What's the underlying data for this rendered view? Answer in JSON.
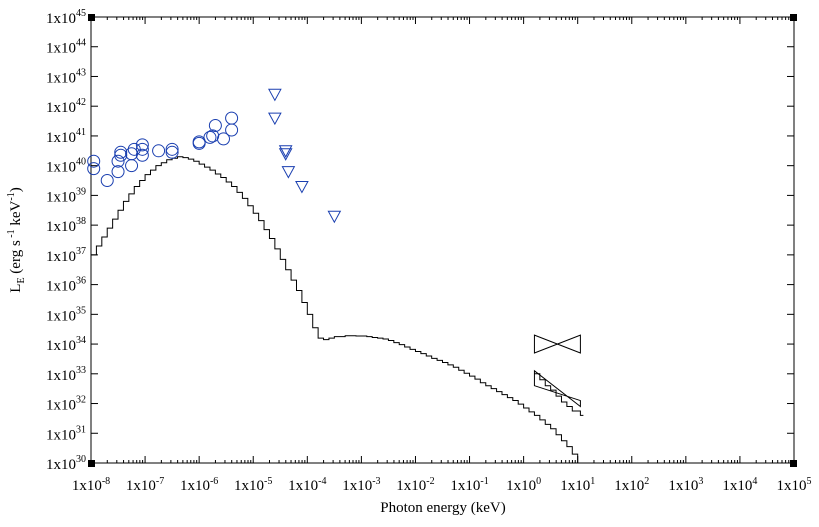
{
  "chart_data": {
    "type": "line",
    "xlabel": "Photon energy (keV)",
    "ylabel": "L_E (erg s^-1 keV^-1)",
    "x_scale": "log",
    "y_scale": "log",
    "xlim": [
      1e-08,
      100000
    ],
    "ylim": [
      1e+30,
      1e+45
    ],
    "x_ticks": [
      {
        "exp": -8,
        "base": "1x10",
        "sup": "-8"
      },
      {
        "exp": -7,
        "base": "1x10",
        "sup": "-7"
      },
      {
        "exp": -6,
        "base": "1x10",
        "sup": "-6"
      },
      {
        "exp": -5,
        "base": "1x10",
        "sup": "-5"
      },
      {
        "exp": -4,
        "base": "1x10",
        "sup": "-4"
      },
      {
        "exp": -3,
        "base": "1x10",
        "sup": "-3"
      },
      {
        "exp": -2,
        "base": "1x10",
        "sup": "-2"
      },
      {
        "exp": -1,
        "base": "1x10",
        "sup": "-1"
      },
      {
        "exp": 0,
        "base": "1x10",
        "sup": "0"
      },
      {
        "exp": 1,
        "base": "1x10",
        "sup": "1"
      },
      {
        "exp": 2,
        "base": "1x10",
        "sup": "2"
      },
      {
        "exp": 3,
        "base": "1x10",
        "sup": "3"
      },
      {
        "exp": 4,
        "base": "1x10",
        "sup": "4"
      },
      {
        "exp": 5,
        "base": "1x10",
        "sup": "5"
      }
    ],
    "y_ticks": [
      {
        "exp": 30,
        "base": "1x10",
        "sup": "30"
      },
      {
        "exp": 31,
        "base": "1x10",
        "sup": "31"
      },
      {
        "exp": 32,
        "base": "1x10",
        "sup": "32"
      },
      {
        "exp": 33,
        "base": "1x10",
        "sup": "33"
      },
      {
        "exp": 34,
        "base": "1x10",
        "sup": "34"
      },
      {
        "exp": 35,
        "base": "1x10",
        "sup": "35"
      },
      {
        "exp": 36,
        "base": "1x10",
        "sup": "36"
      },
      {
        "exp": 37,
        "base": "1x10",
        "sup": "37"
      },
      {
        "exp": 38,
        "base": "1x10",
        "sup": "38"
      },
      {
        "exp": 39,
        "base": "1x10",
        "sup": "39"
      },
      {
        "exp": 40,
        "base": "1x10",
        "sup": "40"
      },
      {
        "exp": 41,
        "base": "1x10",
        "sup": "41"
      },
      {
        "exp": 42,
        "base": "1x10",
        "sup": "42"
      },
      {
        "exp": 43,
        "base": "1x10",
        "sup": "43"
      },
      {
        "exp": 44,
        "base": "1x10",
        "sup": "44"
      },
      {
        "exp": 45,
        "base": "1x10",
        "sup": "45"
      }
    ],
    "series": [
      {
        "kind": "step",
        "color": "#000000",
        "points": [
          [
            -8.0,
            37.0
          ],
          [
            -7.9,
            37.3
          ],
          [
            -7.8,
            37.6
          ],
          [
            -7.7,
            37.9
          ],
          [
            -7.6,
            38.2
          ],
          [
            -7.5,
            38.5
          ],
          [
            -7.4,
            38.8
          ],
          [
            -7.3,
            39.05
          ],
          [
            -7.2,
            39.3
          ],
          [
            -7.1,
            39.5
          ],
          [
            -7.0,
            39.7
          ],
          [
            -6.9,
            39.85
          ],
          [
            -6.8,
            40.0
          ],
          [
            -6.7,
            40.1
          ],
          [
            -6.6,
            40.2
          ],
          [
            -6.5,
            40.25
          ],
          [
            -6.4,
            40.3
          ],
          [
            -6.3,
            40.27
          ],
          [
            -6.2,
            40.22
          ],
          [
            -6.1,
            40.15
          ],
          [
            -6.0,
            40.05
          ],
          [
            -5.9,
            39.95
          ],
          [
            -5.8,
            39.85
          ],
          [
            -5.7,
            39.72
          ],
          [
            -5.6,
            39.6
          ],
          [
            -5.5,
            39.45
          ],
          [
            -5.4,
            39.3
          ],
          [
            -5.3,
            39.1
          ],
          [
            -5.2,
            38.9
          ],
          [
            -5.1,
            38.65
          ],
          [
            -5.0,
            38.4
          ],
          [
            -4.9,
            38.15
          ],
          [
            -4.8,
            37.85
          ],
          [
            -4.7,
            37.55
          ],
          [
            -4.6,
            37.2
          ],
          [
            -4.5,
            36.85
          ],
          [
            -4.4,
            36.5
          ],
          [
            -4.3,
            36.15
          ],
          [
            -4.2,
            35.8
          ],
          [
            -4.1,
            35.4
          ],
          [
            -4.0,
            35.0
          ],
          [
            -3.9,
            34.55
          ],
          [
            -3.8,
            34.2
          ],
          [
            -3.7,
            34.15
          ],
          [
            -3.6,
            34.2
          ],
          [
            -3.5,
            34.25
          ],
          [
            -3.4,
            34.25
          ],
          [
            -3.3,
            34.28
          ],
          [
            -3.2,
            34.28
          ],
          [
            -3.1,
            34.27
          ],
          [
            -3.0,
            34.27
          ],
          [
            -2.9,
            34.25
          ],
          [
            -2.8,
            34.22
          ],
          [
            -2.7,
            34.2
          ],
          [
            -2.6,
            34.17
          ],
          [
            -2.5,
            34.12
          ],
          [
            -2.4,
            34.05
          ],
          [
            -2.3,
            33.98
          ],
          [
            -2.2,
            33.9
          ],
          [
            -2.1,
            33.82
          ],
          [
            -2.0,
            33.75
          ],
          [
            -1.9,
            33.68
          ],
          [
            -1.8,
            33.6
          ],
          [
            -1.7,
            33.52
          ],
          [
            -1.6,
            33.45
          ],
          [
            -1.5,
            33.38
          ],
          [
            -1.4,
            33.3
          ],
          [
            -1.3,
            33.22
          ],
          [
            -1.2,
            33.12
          ],
          [
            -1.1,
            33.02
          ],
          [
            -1.0,
            32.92
          ],
          [
            -0.9,
            32.82
          ],
          [
            -0.8,
            32.7
          ],
          [
            -0.7,
            32.6
          ],
          [
            -0.6,
            32.5
          ],
          [
            -0.5,
            32.4
          ],
          [
            -0.4,
            32.3
          ],
          [
            -0.3,
            32.2
          ],
          [
            -0.2,
            32.1
          ],
          [
            -0.1,
            31.98
          ],
          [
            0.0,
            31.85
          ],
          [
            0.1,
            31.72
          ],
          [
            0.2,
            31.6
          ],
          [
            0.3,
            31.45
          ],
          [
            0.4,
            31.3
          ],
          [
            0.5,
            31.15
          ],
          [
            0.6,
            30.95
          ],
          [
            0.7,
            30.75
          ],
          [
            0.8,
            30.55
          ],
          [
            0.9,
            30.3
          ],
          [
            1.0,
            30.0
          ]
        ]
      },
      {
        "kind": "step",
        "color": "#000000",
        "points": [
          [
            0.2,
            33.0
          ],
          [
            0.3,
            32.8
          ],
          [
            0.4,
            32.6
          ],
          [
            0.5,
            32.45
          ],
          [
            0.6,
            32.25
          ],
          [
            0.7,
            32.05
          ],
          [
            0.8,
            31.9
          ],
          [
            0.9,
            31.75
          ],
          [
            1.05,
            31.6
          ]
        ]
      },
      {
        "kind": "butterfly",
        "color": "#000000",
        "x": [
          0.2,
          1.05
        ],
        "upper": [
          34.3,
          34.3
        ],
        "lower": [
          33.7,
          33.7
        ]
      },
      {
        "kind": "butterfly",
        "color": "#000000",
        "x": [
          0.2,
          1.05
        ],
        "upper": [
          33.1,
          32.1
        ],
        "lower": [
          32.6,
          31.9
        ]
      },
      {
        "kind": "scatter",
        "marker": "circle",
        "color": "#1a3fb0",
        "points": [
          [
            -7.95,
            39.9
          ],
          [
            -7.95,
            40.15
          ],
          [
            -7.7,
            39.5
          ],
          [
            -7.5,
            39.8
          ],
          [
            -7.5,
            40.15
          ],
          [
            -7.45,
            40.35
          ],
          [
            -7.45,
            40.45
          ],
          [
            -7.25,
            40.0
          ],
          [
            -7.25,
            40.4
          ],
          [
            -7.2,
            40.55
          ],
          [
            -7.05,
            40.35
          ],
          [
            -7.05,
            40.55
          ],
          [
            -7.05,
            40.7
          ],
          [
            -6.75,
            40.5
          ],
          [
            -6.5,
            40.45
          ],
          [
            -6.5,
            40.55
          ],
          [
            -6.0,
            40.75
          ],
          [
            -6.0,
            40.8
          ],
          [
            -5.8,
            40.95
          ],
          [
            -5.75,
            41.0
          ],
          [
            -5.7,
            41.35
          ],
          [
            -5.55,
            40.9
          ],
          [
            -5.4,
            41.2
          ],
          [
            -5.4,
            41.6
          ]
        ]
      },
      {
        "kind": "scatter",
        "marker": "triangle-down",
        "color": "#1a3fb0",
        "points": [
          [
            -4.6,
            42.4
          ],
          [
            -4.6,
            41.6
          ],
          [
            -4.4,
            40.5
          ],
          [
            -4.4,
            40.4
          ],
          [
            -4.35,
            39.8
          ],
          [
            -4.1,
            39.3
          ],
          [
            -3.5,
            38.3
          ]
        ]
      }
    ]
  }
}
